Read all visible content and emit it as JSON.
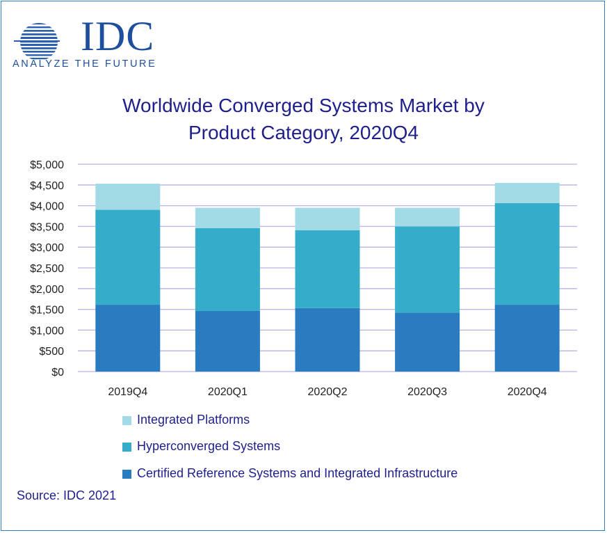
{
  "logo": {
    "wordmark": "IDC",
    "tagline": "ANALYZE THE FUTURE",
    "color": "#1d4f9c"
  },
  "chart_data": {
    "type": "bar",
    "stacked": true,
    "title": "Worldwide Converged Systems Market by Product Category, 2020Q4",
    "title_lines": [
      "Worldwide Converged Systems Market by",
      "Product Category, 2020Q4"
    ],
    "categories": [
      "2019Q4",
      "2020Q1",
      "2020Q2",
      "2020Q3",
      "2020Q4"
    ],
    "series": [
      {
        "name": "Certified Reference Systems and Integrated Infrastructure",
        "color": "#2a7bbf",
        "values": [
          1610,
          1460,
          1530,
          1420,
          1610
        ]
      },
      {
        "name": "Hyperconverged Systems",
        "color": "#35acc9",
        "values": [
          2290,
          2000,
          1880,
          2080,
          2450
        ]
      },
      {
        "name": "Integrated Platforms",
        "color": "#a2dae6",
        "values": [
          630,
          490,
          540,
          450,
          490
        ]
      }
    ],
    "yticks": [
      "$5,000",
      "$4,500",
      "$4,000",
      "$3,500",
      "$3,000",
      "$2,500",
      "$2,000",
      "$1,500",
      "$1,000",
      "$500",
      "$0"
    ],
    "ylim": [
      0,
      5000
    ],
    "grid": true,
    "gridline_color": "#b9b2e6",
    "legend_position": "bottom",
    "xlabel": "",
    "ylabel": ""
  },
  "legend": {
    "items": [
      {
        "label": "Integrated Platforms",
        "color": "#a2dae6"
      },
      {
        "label": "Hyperconverged Systems",
        "color": "#35acc9"
      },
      {
        "label": "Certified Reference Systems and Integrated Infrastructure",
        "color": "#2a7bbf"
      }
    ]
  },
  "source": "Source: IDC 2021"
}
